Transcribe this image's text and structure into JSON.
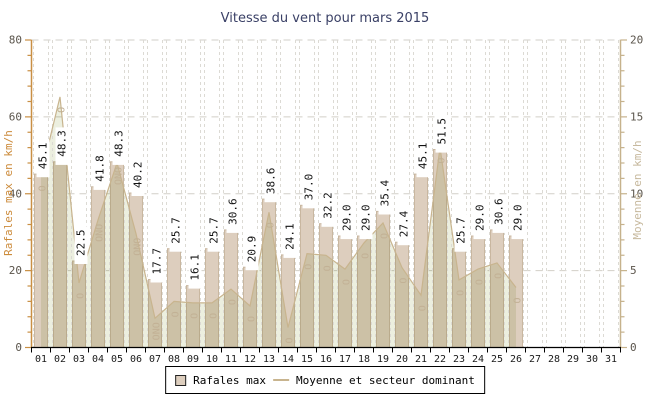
{
  "chart_data": {
    "type": "bar+line",
    "title": "Vitesse du vent pour mars 2015",
    "x_labels": [
      "01",
      "02",
      "03",
      "04",
      "05",
      "06",
      "07",
      "08",
      "09",
      "10",
      "11",
      "12",
      "13",
      "14",
      "15",
      "16",
      "17",
      "18",
      "19",
      "20",
      "21",
      "22",
      "23",
      "24",
      "25",
      "26",
      "27",
      "28",
      "29",
      "30",
      "31"
    ],
    "left_axis": {
      "label": "Rafales max en km/h",
      "min": 0,
      "max": 80,
      "major_ticks": [
        0,
        20,
        40,
        60,
        80
      ],
      "minor_step": 4
    },
    "right_axis": {
      "label": "Moyenne en km/h",
      "min": 0,
      "max": 20,
      "major_ticks": [
        0,
        5,
        10,
        15,
        20
      ],
      "minor_step": 1
    },
    "grid": "dashed",
    "legend_position": "bottom-center",
    "series": [
      {
        "name": "Rafales max",
        "type": "bar",
        "axis": "left",
        "values": [
          45.1,
          48.3,
          22.5,
          41.8,
          48.3,
          40.2,
          17.7,
          25.7,
          16.1,
          25.7,
          30.6,
          20.9,
          38.6,
          24.1,
          37.0,
          32.2,
          29.0,
          29.0,
          35.4,
          27.4,
          45.1,
          51.5,
          25.7,
          29.0,
          30.6,
          29.0,
          null,
          null,
          null,
          null,
          null
        ]
      },
      {
        "name": "Moyenne et secteur dominant",
        "type": "line-area",
        "axis": "right",
        "values": [
          11.2,
          16.3,
          4.2,
          8.3,
          12.0,
          7.4,
          1.9,
          3.0,
          2.9,
          2.9,
          3.8,
          2.7,
          8.8,
          1.3,
          6.1,
          6.0,
          5.1,
          6.8,
          8.1,
          5.2,
          3.4,
          13.0,
          4.4,
          5.1,
          5.5,
          3.9,
          null,
          null,
          null,
          null,
          null
        ],
        "directions": [
          "O",
          "O",
          "O",
          "ONO",
          "ONO",
          "ONO",
          "ONO",
          "O",
          "O",
          "O",
          "O",
          "O",
          "O",
          "O",
          "O",
          "O",
          "O",
          "O",
          "O",
          "O",
          "O",
          "O",
          "O",
          "O",
          "O",
          "O",
          null,
          null,
          null,
          null,
          null
        ]
      }
    ],
    "colors": {
      "title": "#3a4066",
      "bar_fill": "#ddcebe",
      "bar_border": "#c9b7a0",
      "area_fill": "#ecefdf",
      "line": "#c8b48e",
      "direction_label": "#c2b195",
      "left_axis": "#c98f44",
      "left_axis_title": "#cc8b3b",
      "right_axis": "#c6b28c",
      "right_axis_title": "#c7b99e",
      "tick_label": "#5a544b",
      "grid_h": "#d2cfc8",
      "grid_v": "#dcdad4",
      "x_axis": "#000000",
      "x_tick_label": "#1a1a1a",
      "value_label": "#111111"
    }
  }
}
